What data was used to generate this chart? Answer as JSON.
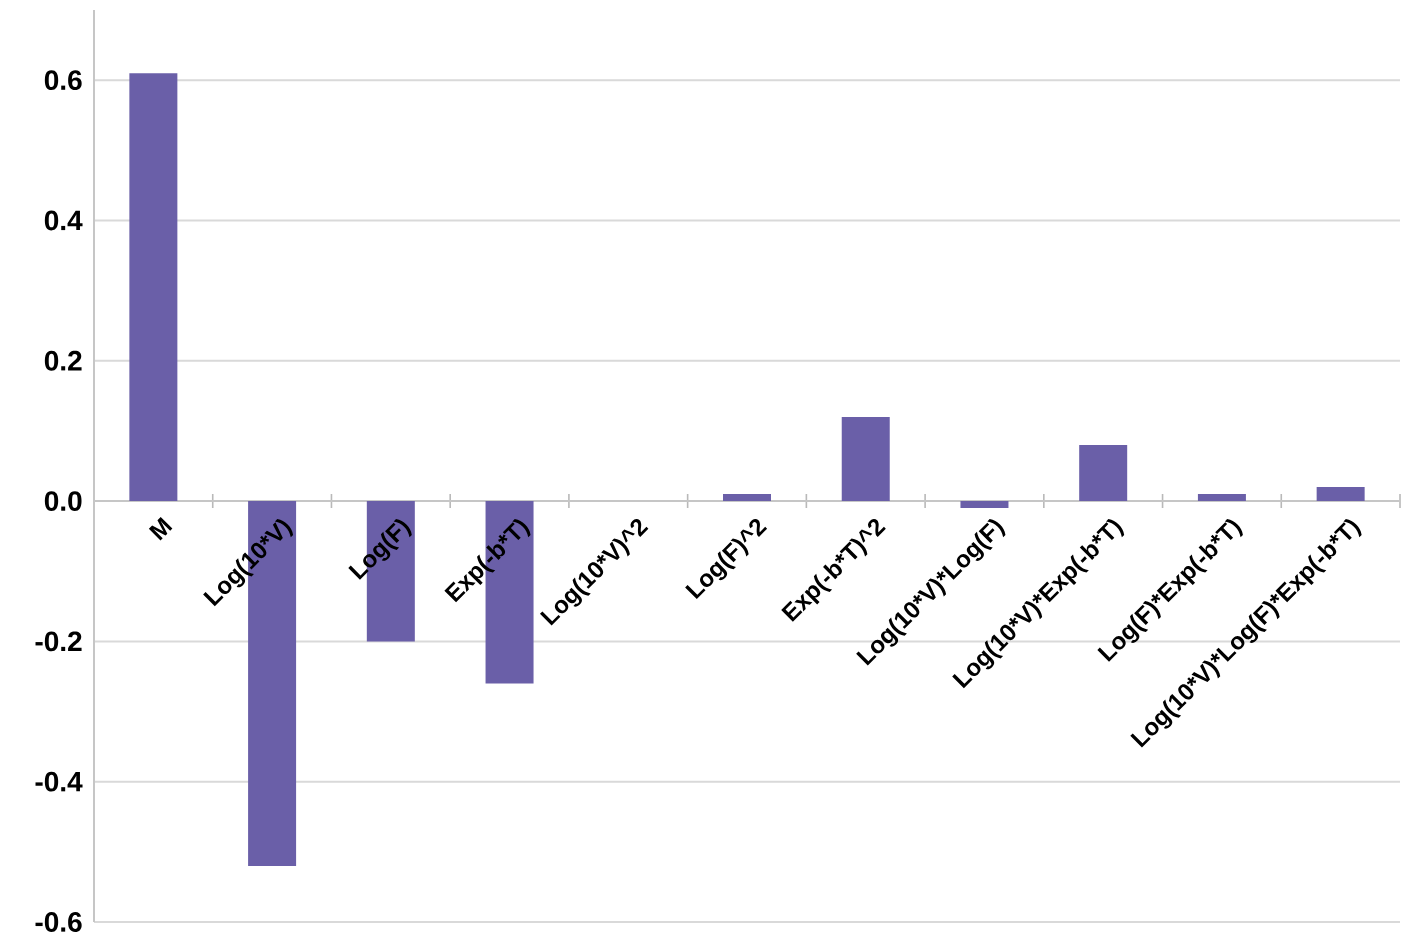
{
  "chart_data": {
    "type": "bar",
    "categories": [
      "M",
      "Log(10*V)",
      "Log(F)",
      "Exp(-b*T)",
      "Log(10*V)^2",
      "Log(F)^2",
      "Exp(-b*T)^2",
      "Log(10*V)*Log(F)",
      "Log(10*V)*Exp(-b*T)",
      "Log(F)*Exp(-b*T)",
      "Log(10*V)*Log(F)*Exp(-b*T)"
    ],
    "values": [
      0.61,
      -0.52,
      -0.2,
      -0.26,
      0,
      0.01,
      0.12,
      -0.01,
      0.08,
      0.01,
      0.02
    ],
    "color": "#6a5fa8",
    "ylim": [
      -0.6,
      0.7
    ],
    "yticks": [
      {
        "value": -0.6,
        "label": "-0.6"
      },
      {
        "value": -0.4,
        "label": "-0.4"
      },
      {
        "value": -0.2,
        "label": "-0.2"
      },
      {
        "value": 0,
        "label": "0.0"
      },
      {
        "value": 0.2,
        "label": "0.2"
      },
      {
        "value": 0.4,
        "label": "0.4"
      },
      {
        "value": 0.6,
        "label": "0.6"
      }
    ],
    "grid": "y"
  }
}
